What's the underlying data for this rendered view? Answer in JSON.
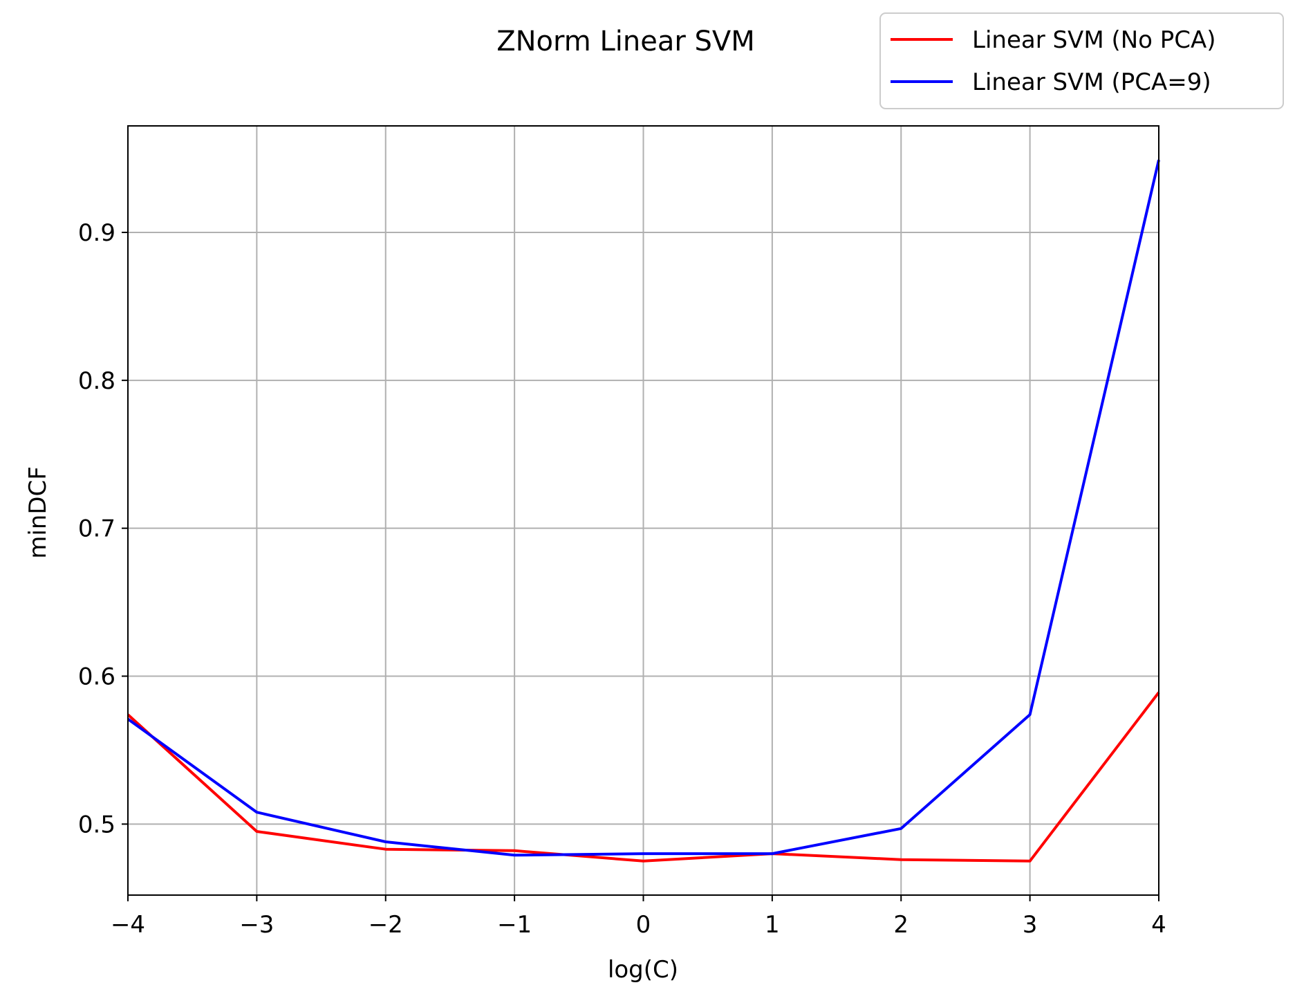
{
  "chart_data": {
    "type": "line",
    "title": "ZNorm Linear SVM",
    "xlabel": "log(C)",
    "ylabel": "minDCF",
    "x": [
      -4,
      -3,
      -2,
      -1,
      0,
      1,
      2,
      3,
      4
    ],
    "xlim": [
      -4,
      4
    ],
    "ylim": [
      0.452,
      0.972
    ],
    "x_ticks": [
      -4,
      -3,
      -2,
      -1,
      0,
      1,
      2,
      3,
      4
    ],
    "x_tick_labels": [
      "−4",
      "−3",
      "−2",
      "−1",
      "0",
      "1",
      "2",
      "3",
      "4"
    ],
    "y_ticks": [
      0.5,
      0.6,
      0.7,
      0.8,
      0.9
    ],
    "y_tick_labels": [
      "0.5",
      "0.6",
      "0.7",
      "0.8",
      "0.9"
    ],
    "grid": true,
    "legend_position": "top-right (outside, above plot)",
    "series": [
      {
        "name": "Linear SVM (No PCA)",
        "color": "#ff0000",
        "values": [
          0.574,
          0.495,
          0.483,
          0.482,
          0.475,
          0.48,
          0.476,
          0.475,
          0.589
        ]
      },
      {
        "name": "Linear SVM (PCA=9)",
        "color": "#0000ff",
        "values": [
          0.571,
          0.508,
          0.488,
          0.479,
          0.48,
          0.48,
          0.497,
          0.574,
          0.949
        ]
      }
    ]
  }
}
